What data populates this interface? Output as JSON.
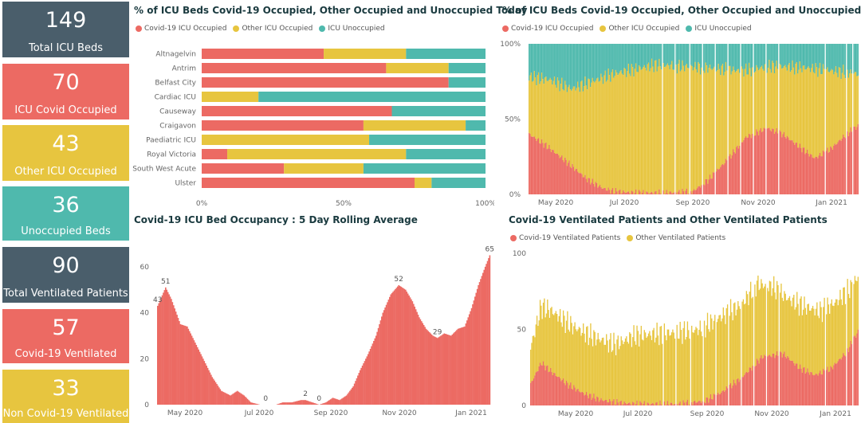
{
  "colors": {
    "covid": "#ec6a63",
    "other": "#e7c53f",
    "unocc": "#4fb9ad",
    "dark": "#4a5e6b"
  },
  "cards": [
    {
      "value": "149",
      "label": "Total ICU Beds",
      "color": "dark"
    },
    {
      "value": "70",
      "label": "ICU Covid Occupied",
      "color": "red"
    },
    {
      "value": "43",
      "label": "Other ICU Occupied",
      "color": "yel"
    },
    {
      "value": "36",
      "label": "Unoccupied Beds",
      "color": "teal"
    },
    {
      "value": "90",
      "label": "Total Ventilated Patients",
      "color": "dark"
    },
    {
      "value": "57",
      "label": "Covid-19 Ventilated",
      "color": "red"
    },
    {
      "value": "33",
      "label": "Non Covid-19 Ventilated",
      "color": "yel"
    }
  ],
  "icu_legend": [
    "Covid-19 ICU Occupied",
    "Other ICU Occupied",
    "ICU Unoccupied"
  ],
  "vent_legend": [
    "Covid-19 Ventilated Patients",
    "Other Ventilated Patients"
  ],
  "chart_data": [
    {
      "type": "bar",
      "orientation": "horizontal",
      "stacked": "100%",
      "title": "% of ICU Beds Covid-19 Occupied, Other Occupied and Unoccupied Today",
      "categories": [
        "Altnagelvin",
        "Antrim",
        "Belfast City",
        "Cardiac ICU",
        "Causeway",
        "Craigavon",
        "Paediatric ICU",
        "Royal Victoria",
        "South West Acute",
        "Ulster"
      ],
      "series": [
        {
          "name": "Covid-19 ICU Occupied",
          "values": [
            43,
            65,
            87,
            0,
            67,
            57,
            0,
            9,
            29,
            75
          ]
        },
        {
          "name": "Other ICU Occupied",
          "values": [
            29,
            22,
            0,
            20,
            0,
            36,
            59,
            63,
            28,
            6
          ]
        },
        {
          "name": "ICU Unoccupied",
          "values": [
            28,
            13,
            13,
            80,
            33,
            7,
            41,
            28,
            43,
            19
          ]
        }
      ],
      "xticks": [
        "0%",
        "50%",
        "100%"
      ],
      "xlim": [
        0,
        100
      ]
    },
    {
      "type": "bar",
      "stacked": "100%",
      "title": "% of ICU Beds Covid-19 Occupied, Other Occupied and Unoccupied",
      "series": [
        {
          "name": "Covid-19 ICU Occupied"
        },
        {
          "name": "Other ICU Occupied"
        },
        {
          "name": "ICU Unoccupied"
        }
      ],
      "keypoints_covid_pct": [
        [
          0,
          40
        ],
        [
          15,
          33
        ],
        [
          35,
          22
        ],
        [
          55,
          10
        ],
        [
          70,
          4
        ],
        [
          80,
          2
        ],
        [
          100,
          1
        ],
        [
          130,
          1
        ],
        [
          155,
          2
        ],
        [
          170,
          10
        ],
        [
          190,
          25
        ],
        [
          205,
          38
        ],
        [
          225,
          44
        ],
        [
          240,
          40
        ],
        [
          255,
          32
        ],
        [
          270,
          24
        ],
        [
          285,
          30
        ],
        [
          300,
          40
        ],
        [
          312,
          46
        ]
      ],
      "keypoints_other_pct": [
        [
          0,
          78
        ],
        [
          20,
          76
        ],
        [
          40,
          70
        ],
        [
          60,
          75
        ],
        [
          80,
          80
        ],
        [
          120,
          86
        ],
        [
          170,
          84
        ],
        [
          200,
          82
        ],
        [
          230,
          85
        ],
        [
          260,
          84
        ],
        [
          312,
          80
        ]
      ],
      "xticks": [
        "May 2020",
        "Jul 2020",
        "Sep 2020",
        "Nov 2020",
        "Jan 2021"
      ],
      "yticks": [
        "0%",
        "50%",
        "100%"
      ],
      "ylim": [
        0,
        100
      ]
    },
    {
      "type": "bar",
      "title": "Covid-19 ICU Bed Occupancy : 5 Day Rolling Average",
      "keypoints": [
        [
          0,
          43
        ],
        [
          7,
          51
        ],
        [
          12,
          46
        ],
        [
          20,
          35
        ],
        [
          26,
          34
        ],
        [
          32,
          28
        ],
        [
          40,
          20
        ],
        [
          48,
          12
        ],
        [
          56,
          6
        ],
        [
          64,
          4
        ],
        [
          70,
          6
        ],
        [
          76,
          4
        ],
        [
          82,
          1
        ],
        [
          90,
          0
        ],
        [
          98,
          0
        ],
        [
          104,
          0
        ],
        [
          110,
          1
        ],
        [
          118,
          1
        ],
        [
          126,
          2
        ],
        [
          130,
          2
        ],
        [
          136,
          1
        ],
        [
          142,
          0
        ],
        [
          148,
          1
        ],
        [
          154,
          3
        ],
        [
          160,
          2
        ],
        [
          166,
          4
        ],
        [
          172,
          8
        ],
        [
          178,
          15
        ],
        [
          185,
          22
        ],
        [
          192,
          30
        ],
        [
          198,
          40
        ],
        [
          205,
          48
        ],
        [
          212,
          52
        ],
        [
          218,
          50
        ],
        [
          224,
          45
        ],
        [
          230,
          38
        ],
        [
          236,
          33
        ],
        [
          242,
          30
        ],
        [
          246,
          29
        ],
        [
          252,
          31
        ],
        [
          258,
          30
        ],
        [
          264,
          33
        ],
        [
          270,
          34
        ],
        [
          276,
          42
        ],
        [
          282,
          52
        ],
        [
          288,
          60
        ],
        [
          292,
          65
        ]
      ],
      "data_labels": [
        {
          "x": 0,
          "text": "43"
        },
        {
          "x": 7,
          "text": "51"
        },
        {
          "x": 95,
          "text": "0"
        },
        {
          "x": 130,
          "text": "2"
        },
        {
          "x": 142,
          "text": "0"
        },
        {
          "x": 212,
          "text": "52"
        },
        {
          "x": 246,
          "text": "29"
        },
        {
          "x": 292,
          "text": "65"
        }
      ],
      "yticks": [
        "0",
        "20",
        "40",
        "60"
      ],
      "ylim": [
        0,
        70
      ],
      "xticks": [
        "May 2020",
        "Jul 2020",
        "Sep 2020",
        "Nov 2020",
        "Jan 2021"
      ]
    },
    {
      "type": "bar",
      "stacked": true,
      "title": "Covid-19 Ventilated Patients and Other Ventilated Patients",
      "series": [
        {
          "name": "Covid-19 Ventilated Patients"
        },
        {
          "name": "Other Ventilated Patients"
        }
      ],
      "keypoints_covid": [
        [
          0,
          14
        ],
        [
          10,
          28
        ],
        [
          20,
          22
        ],
        [
          35,
          14
        ],
        [
          50,
          8
        ],
        [
          65,
          4
        ],
        [
          80,
          2
        ],
        [
          100,
          1
        ],
        [
          140,
          1
        ],
        [
          165,
          3
        ],
        [
          180,
          8
        ],
        [
          200,
          18
        ],
        [
          220,
          32
        ],
        [
          240,
          34
        ],
        [
          255,
          25
        ],
        [
          270,
          20
        ],
        [
          285,
          24
        ],
        [
          300,
          35
        ],
        [
          312,
          50
        ]
      ],
      "keypoints_total": [
        [
          0,
          38
        ],
        [
          10,
          65
        ],
        [
          20,
          62
        ],
        [
          40,
          52
        ],
        [
          60,
          45
        ],
        [
          80,
          40
        ],
        [
          100,
          46
        ],
        [
          140,
          48
        ],
        [
          160,
          50
        ],
        [
          180,
          58
        ],
        [
          200,
          66
        ],
        [
          215,
          80
        ],
        [
          230,
          78
        ],
        [
          245,
          70
        ],
        [
          260,
          65
        ],
        [
          275,
          62
        ],
        [
          290,
          68
        ],
        [
          305,
          78
        ],
        [
          312,
          86
        ]
      ],
      "yticks": [
        "0",
        "50",
        "100"
      ],
      "ylim": [
        0,
        100
      ],
      "xticks": [
        "May 2020",
        "Jul 2020",
        "Sep 2020",
        "Nov 2020",
        "Jan 2021"
      ]
    }
  ]
}
